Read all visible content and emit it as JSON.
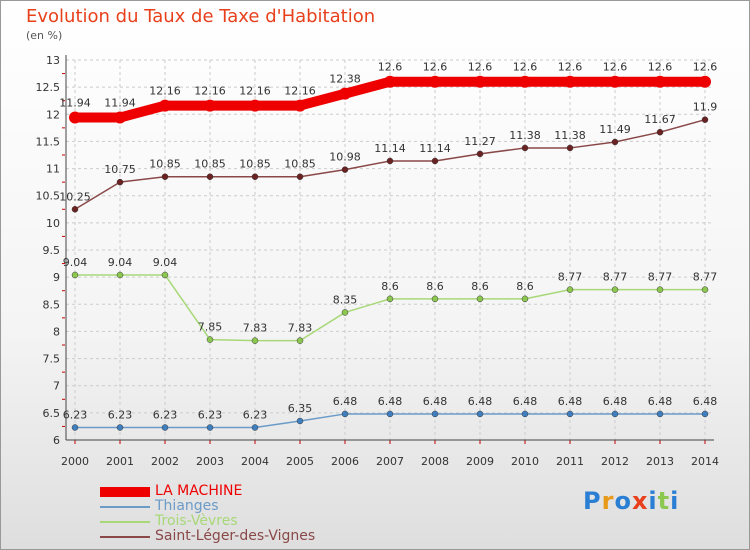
{
  "header": {
    "title": "Evolution du Taux de Taxe d'Habitation",
    "unit": "(en %)"
  },
  "logo": {
    "text": "Proxiti"
  },
  "colors": {
    "title": "#e8401c",
    "grid": "#cccccc",
    "axis": "#444444",
    "tick_red": "#cc0000"
  },
  "chart_data": {
    "type": "line",
    "x": [
      "2000",
      "2001",
      "2002",
      "2003",
      "2004",
      "2005",
      "2006",
      "2007",
      "2008",
      "2009",
      "2010",
      "2011",
      "2012",
      "2013",
      "2014"
    ],
    "ylim": [
      6,
      13
    ],
    "yticks": [
      "6",
      "6.5",
      "7",
      "7.5",
      "8",
      "8.5",
      "9",
      "9.5",
      "10",
      "10.5",
      "11",
      "11.5",
      "12",
      "12.5",
      "13"
    ],
    "grid": true,
    "legend_position": "bottom-left",
    "series": [
      {
        "name": "LA MACHINE",
        "color": "#ee0000",
        "point_color": "#ee0000",
        "thick": true,
        "values": [
          11.94,
          11.94,
          12.16,
          12.16,
          12.16,
          12.16,
          12.38,
          12.6,
          12.6,
          12.6,
          12.6,
          12.6,
          12.6,
          12.6,
          12.6
        ],
        "labels": [
          "11.94",
          "11.94",
          "12.16",
          "12.16",
          "12.16",
          "12.16",
          "12.38",
          "12.6",
          "12.6",
          "12.6",
          "12.6",
          "12.6",
          "12.6",
          "12.6",
          "12.6"
        ]
      },
      {
        "name": "Thianges",
        "color": "#6b9bc8",
        "point_color": "#3f7fbf",
        "thick": false,
        "values": [
          6.23,
          6.23,
          6.23,
          6.23,
          6.23,
          6.35,
          6.48,
          6.48,
          6.48,
          6.48,
          6.48,
          6.48,
          6.48,
          6.48,
          6.48
        ],
        "labels": [
          "6.23",
          "6.23",
          "6.23",
          "6.23",
          "6.23",
          "6.35",
          "6.48",
          "6.48",
          "6.48",
          "6.48",
          "6.48",
          "6.48",
          "6.48",
          "6.48",
          "6.48"
        ]
      },
      {
        "name": "Trois-Vèvres",
        "color": "#a8d878",
        "point_color": "#8cc850",
        "thick": false,
        "values": [
          9.04,
          9.04,
          9.04,
          7.85,
          7.83,
          7.83,
          8.35,
          8.6,
          8.6,
          8.6,
          8.6,
          8.77,
          8.77,
          8.77,
          8.77
        ],
        "labels": [
          "9.04",
          "9.04",
          "9.04",
          "7.85",
          "7.83",
          "7.83",
          "8.35",
          "8.6",
          "8.6",
          "8.6",
          "8.6",
          "8.77",
          "8.77",
          "8.77",
          "8.77"
        ]
      },
      {
        "name": "Saint-Léger-des-Vignes",
        "color": "#8a4848",
        "point_color": "#6b2222",
        "thick": false,
        "values": [
          10.25,
          10.75,
          10.85,
          10.85,
          10.85,
          10.85,
          10.98,
          11.14,
          11.14,
          11.27,
          11.38,
          11.38,
          11.49,
          11.67,
          11.9
        ],
        "labels": [
          "10.25",
          "10.75",
          "10.85",
          "10.85",
          "10.85",
          "10.85",
          "10.98",
          "11.14",
          "11.14",
          "11.27",
          "11.38",
          "11.38",
          "11.49",
          "11.67",
          "11.9"
        ]
      }
    ]
  }
}
